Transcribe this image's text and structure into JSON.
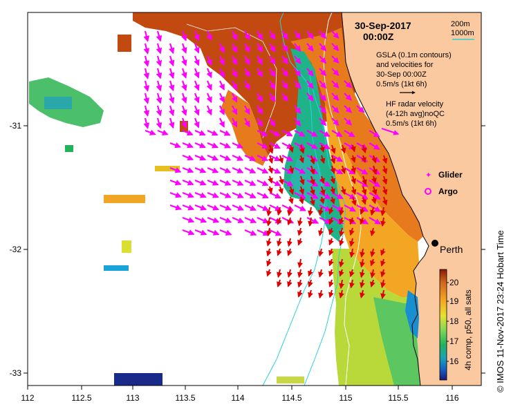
{
  "header": {
    "date": "30-Sep-2017",
    "time": "00:00Z"
  },
  "depth_legend": {
    "shallow": "200m",
    "deep": "1000m"
  },
  "gsla_note": {
    "line1": "GSLA (0.1m contours)",
    "line2": "and velocities for",
    "line3": "30-Sep 00:00Z",
    "line4": "0.5m/s (1kt 6h)"
  },
  "hf_note": {
    "line1": "HF radar velocity",
    "line2": "(4-12h avg)noQC",
    "line3": "0.5m/s (1kt 6h)"
  },
  "legend": {
    "glider": "Glider",
    "argo": "Argo"
  },
  "city": "Perth",
  "axes": {
    "x_ticks": [
      "112",
      "112.5",
      "113",
      "113.5",
      "114",
      "114.5",
      "115",
      "115.5",
      "116"
    ],
    "y_ticks": [
      "-31",
      "-32",
      "-33"
    ]
  },
  "colorbar": {
    "label": "4h comp, p50, all sats",
    "ticks": [
      "20",
      "19",
      "18",
      "17",
      "16"
    ]
  },
  "credit": "© IMOS 11-Nov-2017 23:24 Hobart Time",
  "colors": {
    "land": "#fbc9a0",
    "glsa_arrow": "#000000",
    "hf_arrow": "#ff00ff",
    "model_arrow": "#e00000",
    "iso200": "#ffffff",
    "iso1000": "#26d3d8"
  }
}
